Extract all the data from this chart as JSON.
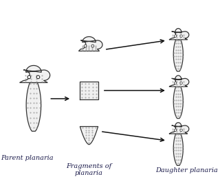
{
  "bg_color": "#ffffff",
  "outline_color": "#333333",
  "fill_color": "#f0f0f0",
  "dot_color": "#999999",
  "arrow_color": "#111111",
  "text_color": "#1a1a4a",
  "labels": {
    "parent": "Parent planaria",
    "fragments": "Fragments of\nplanaria",
    "daughter": "Daughter planaria"
  },
  "label_fontsize": 7.0,
  "figsize": [
    3.2,
    2.64
  ],
  "dpi": 100
}
